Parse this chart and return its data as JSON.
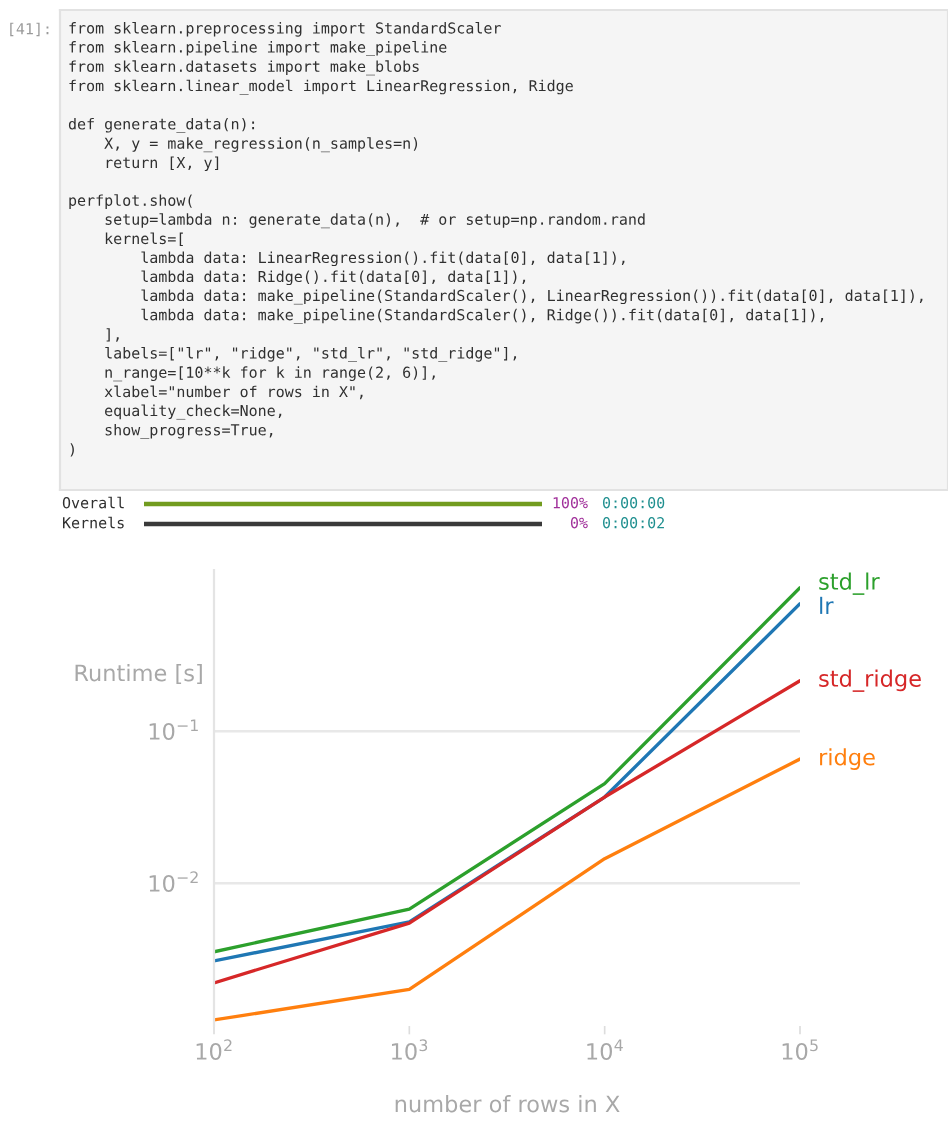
{
  "chart_data": [
    {
      "type": "other",
      "annotations": [
        "[41]:",
        "from sklearn.preprocessing import StandardScaler\nfrom sklearn.pipeline import make_pipeline\nfrom sklearn.datasets import make_blobs\nfrom sklearn.linear_model import LinearRegression, Ridge\n\ndef generate_data(n):\n    X, y = make_regression(n_samples=n)\n    return [X, y]\n\nperfplot.show(\n    setup=lambda n: generate_data(n),  # or setup=np.random.rand\n    kernels=[\n        lambda data: LinearRegression().fit(data[0], data[1]),\n        lambda data: Ridge().fit(data[0], data[1]),\n        lambda data: make_pipeline(StandardScaler(), LinearRegression()).fit(data[0], data[1]),\n        lambda data: make_pipeline(StandardScaler(), Ridge()).fit(data[0], data[1]),\n    ],\n    labels=[\"lr\", \"ridge\", \"std_lr\", \"std_ridge\"],\n    n_range=[10**k for k in range(2, 6)],\n    xlabel=\"number of rows in X\",\n    equality_check=None,\n    show_progress=True,\n)"
      ]
    },
    {
      "type": "other",
      "annotations": [
        "Overall",
        "100%",
        "0:00:00",
        "Kernels",
        "0%",
        "0:00:02"
      ]
    },
    {
      "type": "line",
      "x": [
        100,
        1000,
        10000,
        100000
      ],
      "series": [
        {
          "name": "lr",
          "color": "#1f77b4",
          "values": [
            0.00308,
            0.00557,
            0.0369,
            0.69
          ]
        },
        {
          "name": "ridge",
          "color": "#ff7f0e",
          "values": [
            0.00126,
            0.002,
            0.0145,
            0.0656
          ]
        },
        {
          "name": "std_lr",
          "color": "#2ca02c",
          "values": [
            0.00354,
            0.00676,
            0.0452,
            0.88
          ]
        },
        {
          "name": "std_ridge",
          "color": "#d62728",
          "values": [
            0.00221,
            0.00547,
            0.0369,
            0.215
          ]
        }
      ],
      "xlabel": "number of rows in X",
      "ylabel": "Runtime [s]",
      "log": "xy",
      "xlim": [
        100,
        100000
      ],
      "ylim": [
        0.00115,
        1.15
      ],
      "xticks": [
        {
          "value": 100,
          "label": "10$^{2}$"
        },
        {
          "value": 1000,
          "label": "10$^{3}$"
        },
        {
          "value": 10000,
          "label": "10$^{4}$"
        },
        {
          "value": 100000,
          "label": "10$^{5}$"
        }
      ],
      "yticks": [
        {
          "value": 0.01,
          "label": "10$^{−2}$"
        },
        {
          "value": 0.1,
          "label": "10$^{−1}$"
        }
      ],
      "grid": "y"
    }
  ]
}
